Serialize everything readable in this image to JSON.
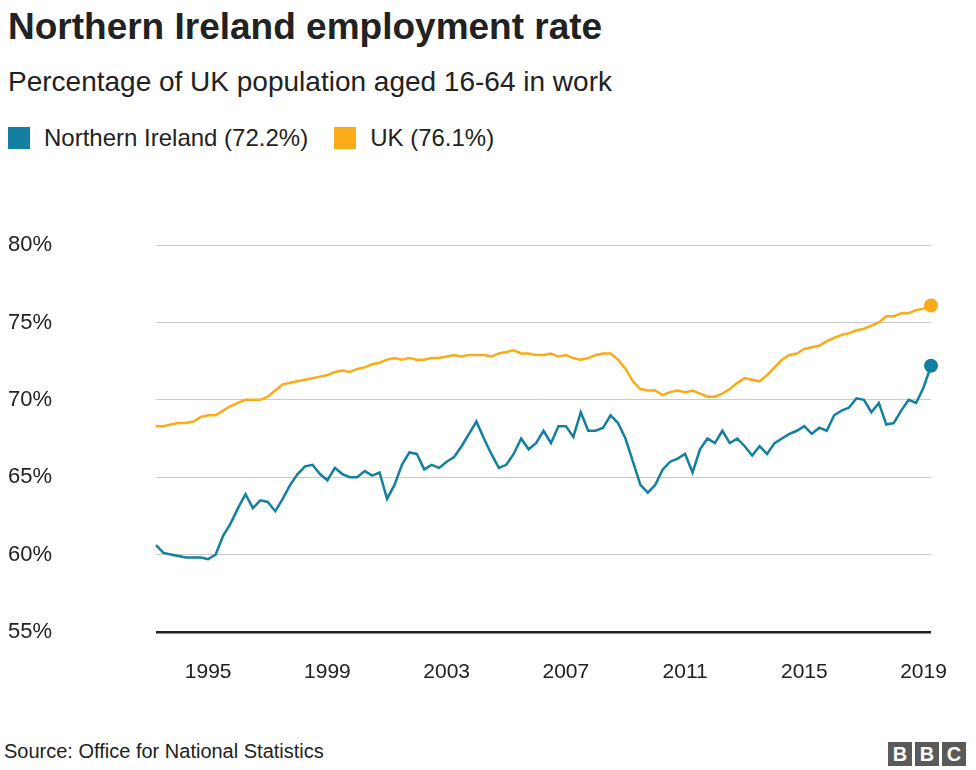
{
  "chart_data": {
    "type": "line",
    "title": "Northern Ireland employment rate",
    "subtitle": "Percentage of UK population aged 16-64 in work",
    "source": "Source: Office for National Statistics",
    "logo": "BBC",
    "legend": "top-left",
    "grid": true,
    "ylim": [
      55,
      80
    ],
    "yticks": [
      {
        "value": 55,
        "label": "55%"
      },
      {
        "value": 60,
        "label": "60%"
      },
      {
        "value": 65,
        "label": "65%"
      },
      {
        "value": 70,
        "label": "70%"
      },
      {
        "value": 75,
        "label": "75%"
      },
      {
        "value": 80,
        "label": "80%"
      }
    ],
    "categories": [
      null,
      null,
      null,
      null,
      null,
      null,
      null,
      "1995",
      null,
      null,
      null,
      null,
      null,
      null,
      null,
      null,
      null,
      null,
      null,
      null,
      null,
      null,
      null,
      "1999",
      null,
      null,
      null,
      null,
      null,
      null,
      null,
      null,
      null,
      null,
      null,
      null,
      null,
      null,
      null,
      "2003",
      null,
      null,
      null,
      null,
      null,
      null,
      null,
      null,
      null,
      null,
      null,
      null,
      null,
      null,
      null,
      "2007",
      null,
      null,
      null,
      null,
      null,
      null,
      null,
      null,
      null,
      null,
      null,
      null,
      null,
      null,
      null,
      "2011",
      null,
      null,
      null,
      null,
      null,
      null,
      null,
      null,
      null,
      null,
      null,
      null,
      null,
      null,
      null,
      "2015",
      null,
      null,
      null,
      null,
      null,
      null,
      null,
      null,
      null,
      null,
      null,
      null,
      null,
      null,
      null,
      "2019",
      null
    ],
    "series": [
      {
        "name": "Northern Ireland (72.2%)",
        "color": "#1380a1",
        "values": [
          60.6,
          60.1,
          60.0,
          59.9,
          59.8,
          59.8,
          59.8,
          59.7,
          60.0,
          61.2,
          62.0,
          63.0,
          63.9,
          63.0,
          63.5,
          63.4,
          62.8,
          63.6,
          64.5,
          65.2,
          65.7,
          65.8,
          65.2,
          64.8,
          65.6,
          65.2,
          65.0,
          65.0,
          65.4,
          65.1,
          65.3,
          63.6,
          64.5,
          65.8,
          66.6,
          66.5,
          65.5,
          65.8,
          65.6,
          66.0,
          66.3,
          67.0,
          67.8,
          68.6,
          67.5,
          66.5,
          65.6,
          65.8,
          66.5,
          67.5,
          66.8,
          67.2,
          68.0,
          67.2,
          68.3,
          68.3,
          67.6,
          69.2,
          68.0,
          68.0,
          68.2,
          69.0,
          68.5,
          67.5,
          66.0,
          64.5,
          64.0,
          64.5,
          65.5,
          66.0,
          66.2,
          66.5,
          65.3,
          66.8,
          67.5,
          67.2,
          68.0,
          67.2,
          67.5,
          67.0,
          66.4,
          67.0,
          66.5,
          67.2,
          67.5,
          67.8,
          68.0,
          68.3,
          67.8,
          68.2,
          68.0,
          69.0,
          69.3,
          69.5,
          70.1,
          70.0,
          69.2,
          69.8,
          68.4,
          68.5,
          69.3,
          70.0,
          69.8,
          70.8,
          72.2
        ]
      },
      {
        "name": "UK (76.1%)",
        "color": "#faab18",
        "values": [
          68.3,
          68.3,
          68.4,
          68.5,
          68.5,
          68.6,
          68.9,
          69.0,
          69.0,
          69.3,
          69.6,
          69.8,
          70.0,
          70.0,
          70.0,
          70.2,
          70.6,
          71.0,
          71.1,
          71.2,
          71.3,
          71.4,
          71.5,
          71.6,
          71.8,
          71.9,
          71.8,
          72.0,
          72.1,
          72.3,
          72.4,
          72.6,
          72.7,
          72.6,
          72.7,
          72.6,
          72.6,
          72.7,
          72.7,
          72.8,
          72.9,
          72.8,
          72.9,
          72.9,
          72.9,
          72.8,
          73.0,
          73.1,
          73.2,
          73.0,
          73.0,
          72.9,
          72.9,
          73.0,
          72.8,
          72.9,
          72.7,
          72.6,
          72.7,
          72.9,
          73.0,
          73.0,
          72.6,
          72.0,
          71.2,
          70.7,
          70.6,
          70.6,
          70.3,
          70.5,
          70.6,
          70.5,
          70.6,
          70.4,
          70.2,
          70.2,
          70.4,
          70.7,
          71.1,
          71.4,
          71.3,
          71.2,
          71.6,
          72.1,
          72.6,
          72.9,
          73.0,
          73.3,
          73.4,
          73.5,
          73.8,
          74.0,
          74.2,
          74.3,
          74.5,
          74.6,
          74.8,
          75.0,
          75.4,
          75.4,
          75.6,
          75.6,
          75.8,
          75.9,
          76.1
        ]
      }
    ]
  }
}
